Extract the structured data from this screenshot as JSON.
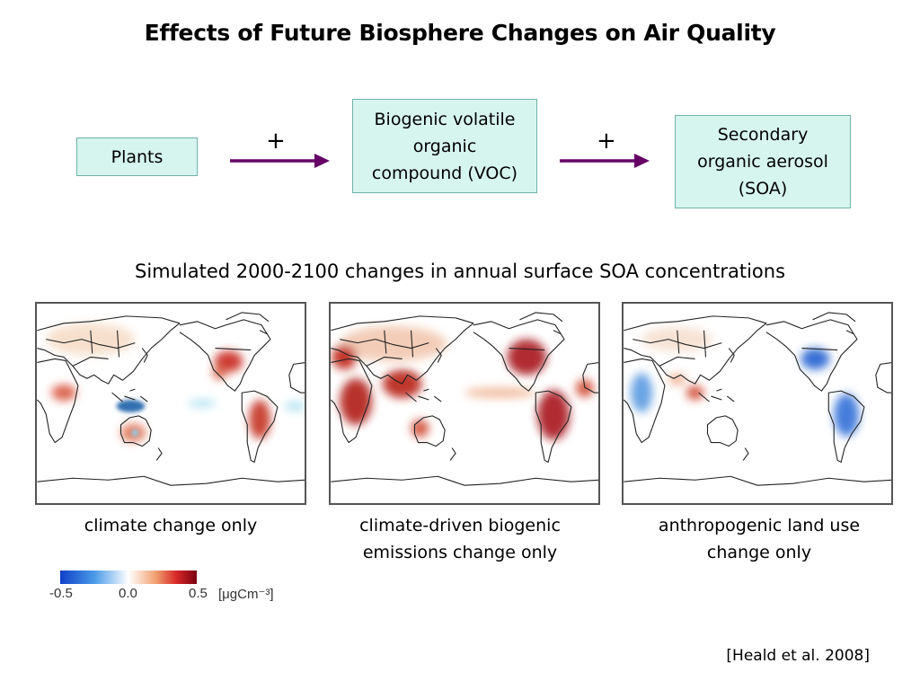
{
  "title": "Effects of Future Biosphere Changes on Air Quality",
  "flow": {
    "boxes": [
      "Plants",
      "Biogenic volatile organic compound (VOC)",
      "Secondary organic aerosol (SOA)"
    ],
    "box_lines": [
      [
        "Plants"
      ],
      [
        "Biogenic volatile",
        "organic",
        "compound (VOC)"
      ],
      [
        "Secondary",
        "organic aerosol",
        "(SOA)"
      ]
    ],
    "arrow_labels": [
      "+",
      "+"
    ],
    "arrow_color": "#660066",
    "box_color": "#d6f5ee"
  },
  "subtitle": "Simulated 2000-2100 changes in annual surface SOA concentrations",
  "maps": [
    {
      "caption_lines": [
        "climate change only"
      ]
    },
    {
      "caption_lines": [
        "climate-driven biogenic",
        "emissions change only"
      ]
    },
    {
      "caption_lines": [
        "anthropogenic land use",
        "change only"
      ]
    }
  ],
  "colorbar": {
    "min_label": "-0.5",
    "mid_label": "0.0",
    "max_label": "0.5",
    "unit": "[μgCm⁻³]",
    "colors": [
      "#1040c8",
      "#ffffff",
      "#7a0010"
    ]
  },
  "citation": "[Heald et al. 2008]"
}
